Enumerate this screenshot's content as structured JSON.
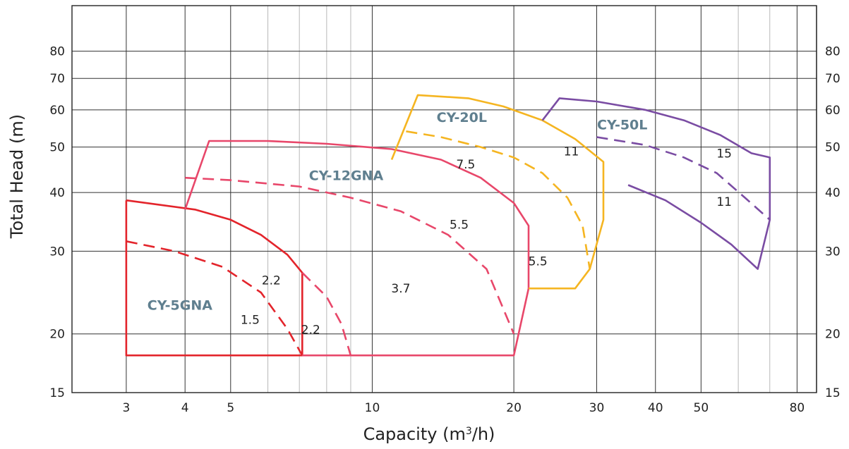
{
  "chart_data": {
    "type": "line",
    "xlabel_text": "Capacity (m",
    "xlabel_sup": "3",
    "xlabel_end": "/h)",
    "ylabel": "Total Head (m)",
    "xscale": "log",
    "yscale": "log",
    "xlim": [
      2.3,
      88
    ],
    "ylim": [
      15,
      100
    ],
    "x_tick_values": [
      3,
      4,
      5,
      10,
      20,
      30,
      40,
      50,
      80
    ],
    "x_tick_labels": [
      "3",
      "4",
      "5",
      "10",
      "20",
      "30",
      "40",
      "50",
      "80"
    ],
    "x_grid_major": [
      3,
      4,
      5,
      10,
      20,
      30,
      40,
      50,
      80
    ],
    "x_grid_minor": [
      6,
      7,
      8,
      9,
      60,
      70
    ],
    "y_tick_values": [
      15,
      20,
      30,
      40,
      50,
      60,
      70,
      80
    ],
    "y_tick_labels": [
      "15",
      "20",
      "30",
      "40",
      "50",
      "60",
      "70",
      "80"
    ],
    "grid": true,
    "colors": {
      "cy5": "#e3242b",
      "cy12": "#e8476a",
      "cy20": "#f5b521",
      "cy50": "#7a4ca3",
      "model_label": "#5f7f8f"
    },
    "models": [
      {
        "name": "CY-5GNA",
        "color_key": "cy5",
        "label_pos": [
          3.9,
          22.5
        ],
        "boundary": [
          [
            3,
            38.5
          ],
          [
            3,
            18
          ],
          [
            7.1,
            18
          ],
          [
            7.1,
            27
          ],
          [
            6.6,
            29.5
          ],
          [
            5.8,
            32.5
          ],
          [
            5,
            35
          ],
          [
            4.2,
            36.8
          ],
          [
            3,
            38.5
          ]
        ],
        "curves": [
          {
            "power": "1.5",
            "style": "dashed",
            "points": [
              [
                3,
                31.5
              ],
              [
                3.8,
                30
              ],
              [
                4.8,
                27.8
              ],
              [
                5.8,
                24.5
              ],
              [
                6.6,
                20.5
              ],
              [
                7.1,
                18
              ]
            ],
            "label_pos": [
              5.5,
              21
            ]
          },
          {
            "power": "2.2",
            "style": "solid",
            "points": [],
            "label_pos": [
              6.1,
              25.5
            ]
          }
        ]
      },
      {
        "name": "CY-12GNA",
        "color_key": "cy12",
        "label_pos": [
          8.8,
          42.5
        ],
        "boundary": [
          [
            4,
            36.8
          ],
          [
            4.5,
            51.5
          ],
          [
            6,
            51.5
          ],
          [
            8,
            50.8
          ],
          [
            11,
            49.5
          ],
          [
            14,
            47
          ],
          [
            17,
            43
          ],
          [
            20,
            38
          ],
          [
            21.5,
            34
          ],
          [
            21.5,
            25
          ],
          [
            20,
            18
          ],
          [
            7.1,
            18
          ]
        ],
        "curves": [
          {
            "power": "2.2",
            "style": "dashed",
            "points": [
              [
                7.1,
                27
              ],
              [
                8,
                24
              ],
              [
                8.6,
                21
              ],
              [
                9,
                18
              ]
            ],
            "label_pos": [
              7.4,
              20
            ]
          },
          {
            "power": "3.7",
            "style": "solid",
            "points": [],
            "label_pos": [
              11.5,
              24.5
            ]
          },
          {
            "power": "5.5",
            "style": "dashed",
            "points": [
              [
                4,
                43
              ],
              [
                5,
                42.5
              ],
              [
                7,
                41.2
              ],
              [
                9,
                39
              ],
              [
                11.5,
                36.5
              ],
              [
                14.5,
                32.5
              ],
              [
                17.5,
                27.5
              ],
              [
                20,
                20
              ]
            ],
            "label_pos": [
              15.3,
              33.5
            ]
          }
        ]
      },
      {
        "name": "CY-20L",
        "color_key": "cy20",
        "label_pos": [
          15.5,
          56.5
        ],
        "boundary": [
          [
            11,
            47
          ],
          [
            12.5,
            64.5
          ],
          [
            16,
            63.5
          ],
          [
            19,
            61
          ],
          [
            23,
            57
          ],
          [
            27,
            52
          ],
          [
            31,
            46.5
          ],
          [
            31,
            35
          ],
          [
            29,
            27.5
          ],
          [
            27,
            25
          ],
          [
            21.5,
            25
          ]
        ],
        "curves": [
          {
            "power": "7.5",
            "style": "dashed",
            "points": [
              [
                11.8,
                54
              ],
              [
                14,
                52.5
              ],
              [
                17,
                50
              ],
              [
                20,
                47.5
              ],
              [
                23,
                44
              ],
              [
                26,
                39
              ],
              [
                28,
                34
              ],
              [
                29,
                27.5
              ]
            ],
            "label_pos": [
              15.8,
              45
            ]
          },
          {
            "power": "5.5",
            "style": "solid",
            "points": [],
            "label_pos": [
              22.5,
              28
            ]
          },
          {
            "power": "11",
            "style": "solid",
            "points": [],
            "label_pos": [
              26.5,
              48
            ]
          }
        ]
      },
      {
        "name": "CY-50L",
        "color_key": "cy50",
        "label_pos": [
          34,
          54.5
        ],
        "boundary": [
          [
            23,
            57
          ],
          [
            25,
            63.5
          ],
          [
            30,
            62.5
          ],
          [
            38,
            60
          ],
          [
            46,
            57
          ],
          [
            55,
            53
          ],
          [
            64,
            48.5
          ],
          [
            70,
            47.5
          ],
          [
            70,
            35
          ],
          [
            66,
            27.5
          ],
          [
            58,
            31
          ],
          [
            50,
            34.5
          ],
          [
            42,
            38.5
          ],
          [
            35,
            41.5
          ]
        ],
        "curves": [
          {
            "power": "15",
            "style": "dashed",
            "points": [
              [
                30,
                52.5
              ],
              [
                38,
                50.5
              ],
              [
                46,
                47.5
              ],
              [
                54,
                44
              ],
              [
                62,
                39
              ],
              [
                70,
                35
              ]
            ],
            "label_pos": [
              56,
              47.5
            ]
          },
          {
            "power": "11",
            "style": "solid",
            "points": [],
            "label_pos": [
              56,
              37.5
            ]
          }
        ]
      }
    ]
  }
}
